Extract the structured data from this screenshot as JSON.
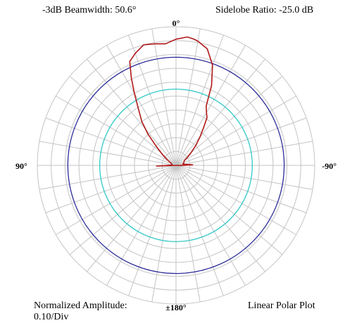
{
  "header": {
    "beamwidth": "-3dB Beamwidth: 50.6°",
    "sidelobe": "Sidelobe Ratio: -25.0 dB"
  },
  "footer": {
    "amplitude_line1": "Normalized Amplitude:",
    "amplitude_line2": "0.10/Div",
    "plot_type": "Linear Polar Plot"
  },
  "chart_data": {
    "type": "polar-line",
    "angle_labels": {
      "top": "0°",
      "left": "90°",
      "right": "-90°",
      "bottom": "±180°"
    },
    "radial_max": 1.0,
    "radial_step": 0.1,
    "angular_step_deg": 10,
    "reference_circles": [
      {
        "radius": 0.78,
        "color": "#2b2b9a"
      },
      {
        "radius": 0.55,
        "color": "#35c8c8"
      }
    ],
    "pattern_color": "#b01818",
    "pattern": {
      "angle_deg": [
        0,
        -5,
        -8,
        -10,
        -15,
        -20,
        -24,
        -27,
        -30,
        -33,
        -36,
        -40,
        -45,
        -50,
        -55,
        -60,
        -70,
        -80,
        -88,
        -92,
        -100,
        -180,
        100,
        92,
        85,
        75,
        65,
        58,
        52,
        46,
        42,
        38,
        34,
        30,
        27,
        24,
        20,
        15,
        10,
        5,
        0
      ],
      "amplitude": [
        0.91,
        0.93,
        0.92,
        0.91,
        0.87,
        0.77,
        0.63,
        0.48,
        0.44,
        0.41,
        0.34,
        0.27,
        0.2,
        0.14,
        0.1,
        0.07,
        0.06,
        0.05,
        0.12,
        0.03,
        0.0,
        0.0,
        0.0,
        0.14,
        0.03,
        0.03,
        0.04,
        0.07,
        0.12,
        0.2,
        0.3,
        0.4,
        0.48,
        0.6,
        0.71,
        0.82,
        0.86,
        0.9,
        0.89,
        0.88,
        0.91
      ]
    }
  }
}
